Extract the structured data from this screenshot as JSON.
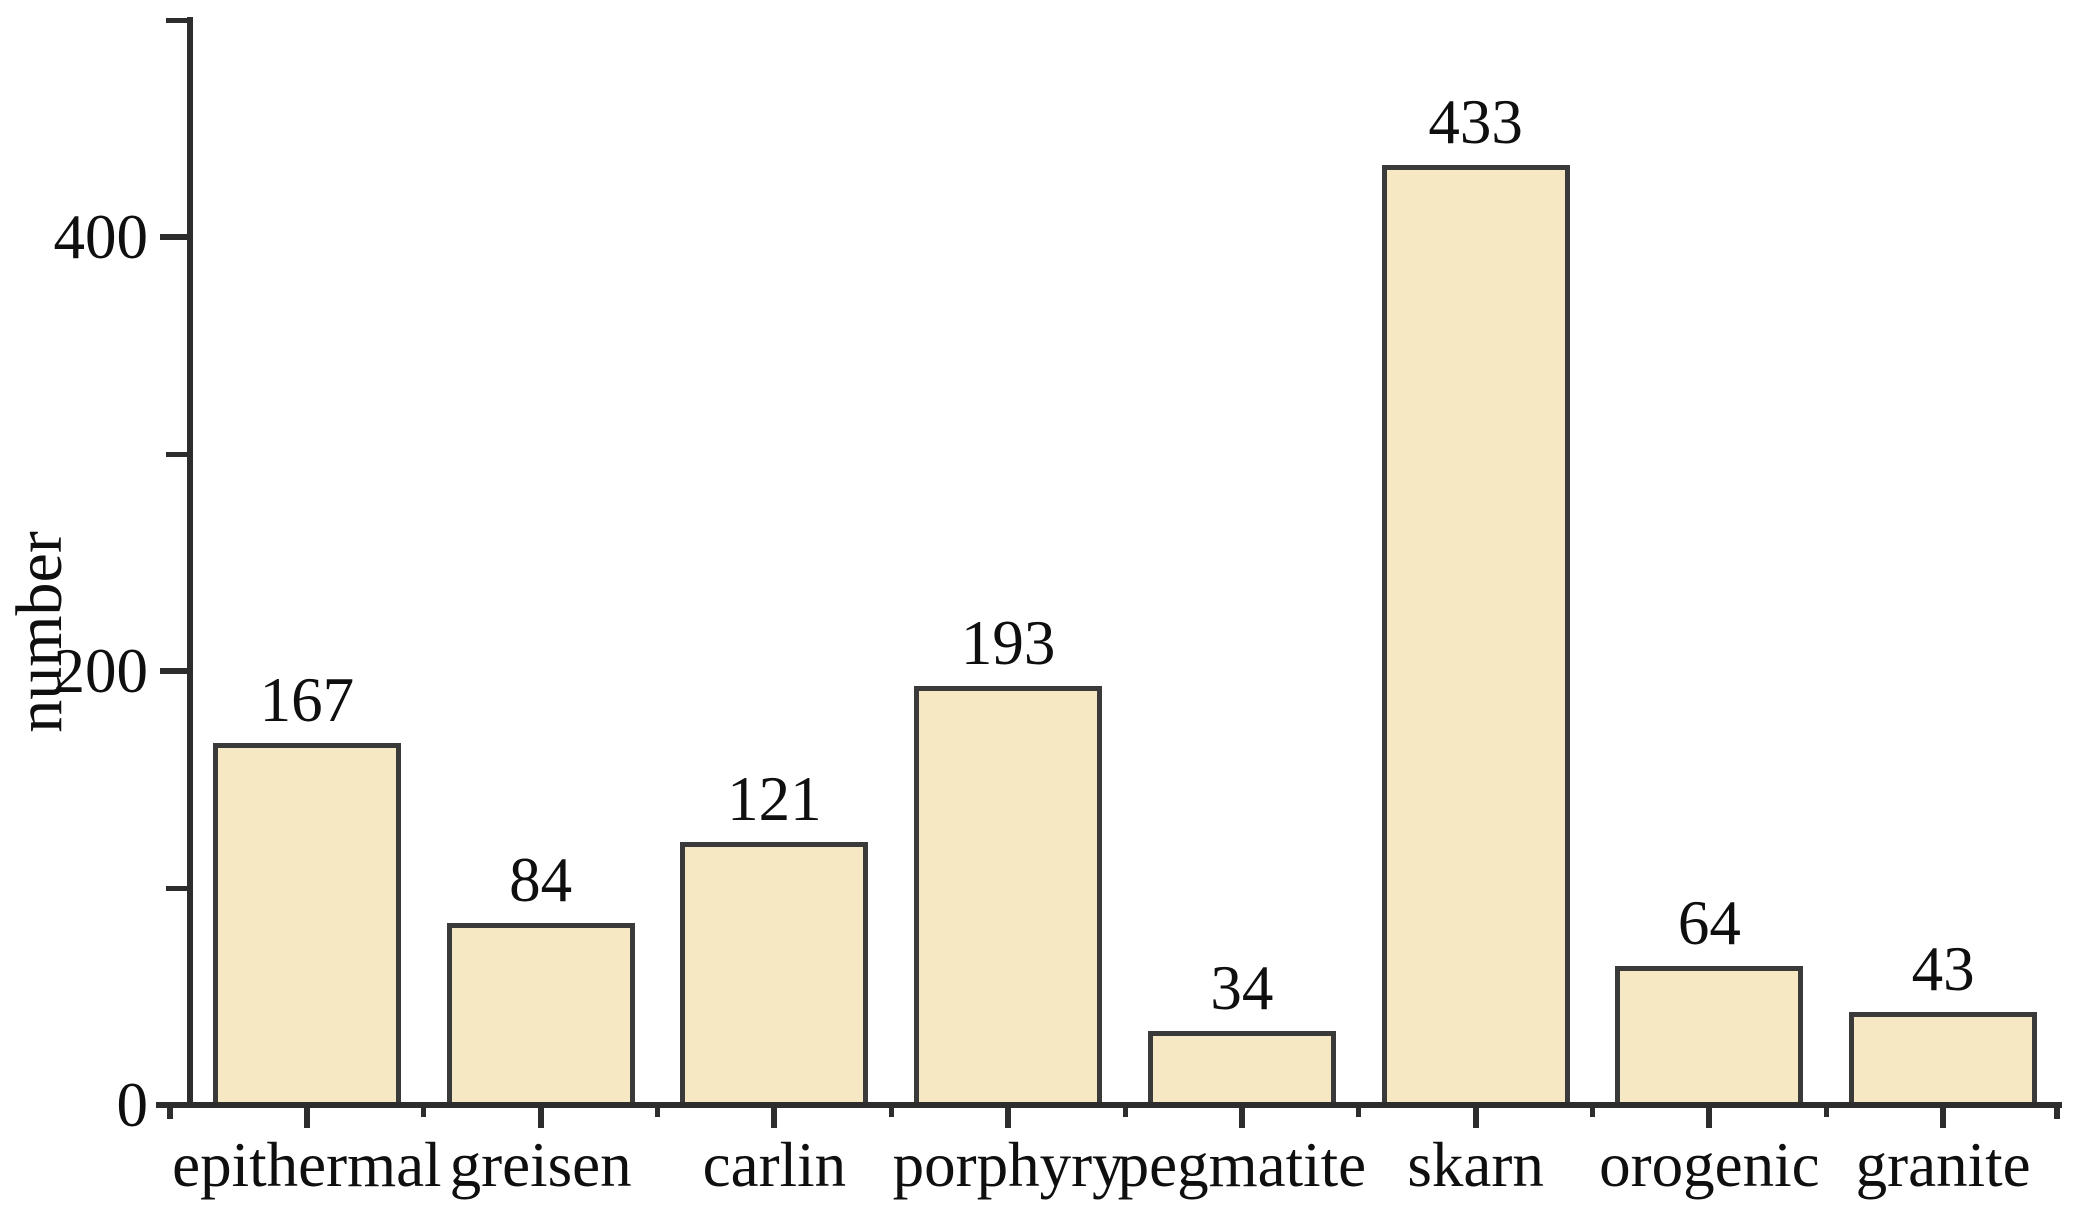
{
  "chart_data": {
    "type": "bar",
    "title": "",
    "xlabel": "",
    "ylabel": "number",
    "categories": [
      "epithermal",
      "greisen",
      "carlin",
      "porphyry",
      "pegmatite",
      "skarn",
      "orogenic",
      "granite"
    ],
    "values": [
      167,
      84,
      121,
      193,
      34,
      433,
      64,
      43
    ],
    "value_labels": [
      "167",
      "84",
      "121",
      "193",
      "34",
      "433",
      "64",
      "43"
    ],
    "ylim": [
      0,
      500
    ],
    "yticks_major": [
      0,
      200,
      400
    ],
    "ytick_labels": [
      "0",
      "200",
      "400"
    ],
    "yticks_minor": [
      100,
      300,
      500
    ],
    "grid": false,
    "legend_position": "none",
    "colors": {
      "bar_fill": "#F6E8C3",
      "bar_border": "#3A3A3A",
      "axis": "#2D2D2D",
      "text": "#0F0F0F",
      "background": "#FFFFFF"
    }
  }
}
